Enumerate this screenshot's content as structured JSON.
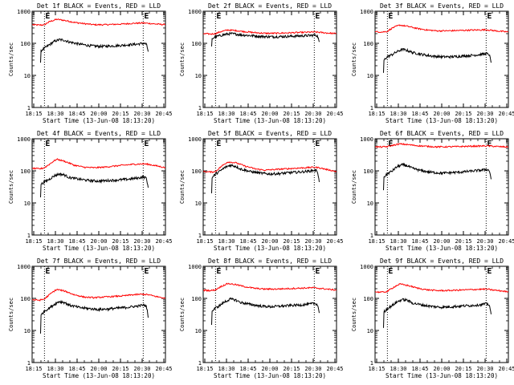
{
  "chart_data": [
    {
      "type": "line",
      "title": "Det 1f BLACK = Events, RED = LLD",
      "xlabel": "Start Time (13-Jun-08 18:13:20)",
      "ylabel": "Counts/sec",
      "yscale": "log",
      "ylim": [
        1,
        1000
      ],
      "xlim": [
        18.25,
        20.95
      ],
      "xticks": [
        "18:15",
        "18:30",
        "18:45",
        "20:00",
        "20:15",
        "20:30",
        "20:45"
      ],
      "yticks": [
        "1",
        "10",
        "100",
        "1000"
      ],
      "markers": [
        {
          "label": "E",
          "x": 18.5
        },
        {
          "label": "E",
          "x": 20.5
        }
      ],
      "series": [
        {
          "color": "#ff0000",
          "x": [
            18.25,
            18.4,
            18.5,
            18.6,
            18.75,
            18.9,
            19.1,
            19.3,
            19.5,
            19.7,
            19.9,
            20.1,
            20.3,
            20.5,
            20.6,
            20.75,
            20.95
          ],
          "y": [
            380,
            370,
            380,
            470,
            560,
            520,
            450,
            410,
            380,
            380,
            390,
            400,
            420,
            430,
            420,
            400,
            380
          ]
        },
        {
          "color": "#000000",
          "x": [
            18.42,
            18.43,
            18.5,
            18.6,
            18.7,
            18.8,
            18.9,
            19.0,
            19.2,
            19.4,
            19.6,
            19.8,
            20.0,
            20.2,
            20.4,
            20.5,
            20.56,
            20.6
          ],
          "y": [
            25,
            60,
            70,
            90,
            115,
            130,
            125,
            110,
            95,
            85,
            80,
            82,
            85,
            90,
            95,
            100,
            95,
            55
          ]
        }
      ]
    },
    {
      "type": "line",
      "title": "Det 2f BLACK = Events, RED = LLD",
      "xlabel": "Start Time (13-Jun-08 18:13:20)",
      "ylabel": "Counts/sec",
      "yscale": "log",
      "ylim": [
        1,
        1000
      ],
      "xlim": [
        18.25,
        20.95
      ],
      "xticks": [
        "18:15",
        "18:30",
        "18:45",
        "20:00",
        "20:15",
        "20:30",
        "20:45"
      ],
      "yticks": [
        "1",
        "10",
        "100",
        "1000"
      ],
      "markers": [
        {
          "label": "E",
          "x": 18.5
        },
        {
          "label": "E",
          "x": 20.5
        }
      ],
      "series": [
        {
          "color": "#ff0000",
          "x": [
            18.25,
            18.4,
            18.5,
            18.6,
            18.75,
            18.9,
            19.1,
            19.3,
            19.5,
            19.7,
            19.9,
            20.1,
            20.3,
            20.5,
            20.6,
            20.75,
            20.95
          ],
          "y": [
            200,
            195,
            200,
            230,
            260,
            250,
            230,
            215,
            205,
            205,
            210,
            215,
            220,
            225,
            220,
            210,
            200
          ]
        },
        {
          "color": "#000000",
          "x": [
            18.42,
            18.43,
            18.5,
            18.6,
            18.7,
            18.8,
            18.9,
            19.0,
            19.2,
            19.4,
            19.6,
            19.8,
            20.0,
            20.2,
            20.4,
            20.5,
            20.56,
            20.6
          ],
          "y": [
            80,
            140,
            160,
            175,
            190,
            200,
            195,
            185,
            175,
            165,
            160,
            162,
            165,
            170,
            175,
            180,
            175,
            110
          ]
        }
      ]
    },
    {
      "type": "line",
      "title": "Det 3f BLACK = Events, RED = LLD",
      "xlabel": "Start Time (13-Jun-08 18:13:20)",
      "ylabel": "Counts/sec",
      "yscale": "log",
      "ylim": [
        1,
        1000
      ],
      "xlim": [
        18.25,
        20.95
      ],
      "xticks": [
        "18:15",
        "18:30",
        "18:45",
        "20:00",
        "20:15",
        "20:30",
        "20:45"
      ],
      "yticks": [
        "1",
        "10",
        "100",
        "1000"
      ],
      "markers": [
        {
          "label": "E",
          "x": 18.5
        },
        {
          "label": "E",
          "x": 20.5
        }
      ],
      "series": [
        {
          "color": "#ff0000",
          "x": [
            18.25,
            18.4,
            18.5,
            18.6,
            18.75,
            18.9,
            19.1,
            19.3,
            19.5,
            19.7,
            19.9,
            20.1,
            20.3,
            20.5,
            20.6,
            20.75,
            20.95
          ],
          "y": [
            230,
            225,
            235,
            300,
            370,
            340,
            290,
            260,
            245,
            245,
            250,
            255,
            260,
            265,
            255,
            240,
            225
          ]
        },
        {
          "color": "#000000",
          "x": [
            18.42,
            18.43,
            18.5,
            18.6,
            18.7,
            18.8,
            18.9,
            19.0,
            19.2,
            19.4,
            19.6,
            19.8,
            20.0,
            20.2,
            20.4,
            20.5,
            20.56,
            20.6
          ],
          "y": [
            12,
            30,
            38,
            45,
            55,
            65,
            60,
            52,
            45,
            40,
            38,
            38,
            40,
            42,
            45,
            48,
            45,
            25
          ]
        }
      ]
    },
    {
      "type": "line",
      "title": "Det 4f BLACK = Events, RED = LLD",
      "xlabel": "Start Time (13-Jun-08 18:13:20)",
      "ylabel": "Counts/sec",
      "yscale": "log",
      "ylim": [
        1,
        1000
      ],
      "xlim": [
        18.25,
        20.95
      ],
      "xticks": [
        "18:15",
        "18:30",
        "18:45",
        "20:00",
        "20:15",
        "20:30",
        "20:45"
      ],
      "yticks": [
        "1",
        "10",
        "100",
        "1000"
      ],
      "markers": [
        {
          "label": "E",
          "x": 18.5
        },
        {
          "label": "E",
          "x": 20.5
        }
      ],
      "series": [
        {
          "color": "#ff0000",
          "x": [
            18.25,
            18.4,
            18.5,
            18.6,
            18.75,
            18.9,
            19.1,
            19.3,
            19.5,
            19.7,
            19.9,
            20.1,
            20.3,
            20.5,
            20.6,
            20.75,
            20.95
          ],
          "y": [
            120,
            115,
            125,
            160,
            230,
            200,
            150,
            130,
            125,
            130,
            140,
            150,
            160,
            165,
            160,
            145,
            125
          ]
        },
        {
          "color": "#000000",
          "x": [
            18.42,
            18.43,
            18.5,
            18.6,
            18.7,
            18.8,
            18.9,
            19.0,
            19.2,
            19.4,
            19.6,
            19.8,
            20.0,
            20.2,
            20.4,
            20.5,
            20.56,
            20.6
          ],
          "y": [
            15,
            38,
            45,
            55,
            70,
            80,
            75,
            62,
            55,
            50,
            48,
            50,
            52,
            55,
            60,
            65,
            60,
            30
          ]
        }
      ]
    },
    {
      "type": "line",
      "title": "Det 5f BLACK = Events, RED = LLD",
      "xlabel": "Start Time (13-Jun-08 18:13:20)",
      "ylabel": "Counts/sec",
      "yscale": "log",
      "ylim": [
        1,
        1000
      ],
      "xlim": [
        18.25,
        20.95
      ],
      "xticks": [
        "18:15",
        "18:30",
        "18:45",
        "20:00",
        "20:15",
        "20:30",
        "20:45"
      ],
      "yticks": [
        "1",
        "10",
        "100",
        "1000"
      ],
      "markers": [
        {
          "label": "E",
          "x": 18.5
        },
        {
          "label": "E",
          "x": 20.5
        }
      ],
      "series": [
        {
          "color": "#ff0000",
          "x": [
            18.25,
            18.4,
            18.5,
            18.6,
            18.75,
            18.9,
            19.1,
            19.3,
            19.5,
            19.7,
            19.9,
            20.1,
            20.3,
            20.5,
            20.6,
            20.75,
            20.95
          ],
          "y": [
            95,
            92,
            95,
            130,
            190,
            180,
            140,
            115,
            105,
            110,
            115,
            120,
            125,
            130,
            125,
            110,
            95
          ]
        },
        {
          "color": "#000000",
          "x": [
            18.42,
            18.43,
            18.5,
            18.6,
            18.7,
            18.8,
            18.9,
            19.0,
            19.2,
            19.4,
            19.6,
            19.8,
            20.0,
            20.2,
            20.4,
            20.5,
            20.56,
            20.6
          ],
          "y": [
            20,
            60,
            80,
            100,
            130,
            150,
            140,
            115,
            95,
            85,
            80,
            82,
            88,
            92,
            98,
            105,
            100,
            45
          ]
        }
      ]
    },
    {
      "type": "line",
      "title": "Det 6f BLACK = Events, RED = LLD",
      "xlabel": "Start Time (13-Jun-08 18:13:20)",
      "ylabel": "Counts/sec",
      "yscale": "log",
      "ylim": [
        1,
        1000
      ],
      "xlim": [
        18.25,
        20.95
      ],
      "xticks": [
        "18:15",
        "18:30",
        "18:45",
        "20:00",
        "20:15",
        "20:30",
        "20:45"
      ],
      "yticks": [
        "1",
        "10",
        "100",
        "1000"
      ],
      "markers": [
        {
          "label": "E",
          "x": 18.5
        },
        {
          "label": "E",
          "x": 20.5
        }
      ],
      "series": [
        {
          "color": "#ff0000",
          "x": [
            18.25,
            18.4,
            18.5,
            18.6,
            18.75,
            18.9,
            19.1,
            19.3,
            19.5,
            19.7,
            19.9,
            20.1,
            20.3,
            20.5,
            20.6,
            20.75,
            20.95
          ],
          "y": [
            560,
            555,
            570,
            620,
            690,
            660,
            610,
            580,
            560,
            560,
            570,
            580,
            590,
            600,
            590,
            570,
            550
          ]
        },
        {
          "color": "#000000",
          "x": [
            18.42,
            18.43,
            18.5,
            18.6,
            18.7,
            18.8,
            18.9,
            19.0,
            19.2,
            19.4,
            19.6,
            19.8,
            20.0,
            20.2,
            20.4,
            20.5,
            20.56,
            20.6
          ],
          "y": [
            25,
            65,
            80,
            100,
            135,
            155,
            145,
            120,
            100,
            90,
            85,
            88,
            92,
            98,
            105,
            110,
            105,
            55
          ]
        }
      ]
    },
    {
      "type": "line",
      "title": "Det 7f BLACK = Events, RED = LLD",
      "xlabel": "Start Time (13-Jun-08 18:13:20)",
      "ylabel": "Counts/sec",
      "yscale": "log",
      "ylim": [
        1,
        1000
      ],
      "xlim": [
        18.25,
        20.95
      ],
      "xticks": [
        "18:15",
        "18:30",
        "18:45",
        "20:00",
        "20:15",
        "20:30",
        "20:45"
      ],
      "yticks": [
        "1",
        "10",
        "100",
        "1000"
      ],
      "markers": [
        {
          "label": "E",
          "x": 18.5
        },
        {
          "label": "E",
          "x": 20.5
        }
      ],
      "series": [
        {
          "color": "#ff0000",
          "x": [
            18.25,
            18.4,
            18.5,
            18.6,
            18.75,
            18.9,
            19.1,
            19.3,
            19.5,
            19.7,
            19.9,
            20.1,
            20.3,
            20.5,
            20.6,
            20.75,
            20.95
          ],
          "y": [
            90,
            88,
            95,
            130,
            190,
            170,
            130,
            110,
            105,
            110,
            115,
            120,
            130,
            135,
            130,
            115,
            100
          ]
        },
        {
          "color": "#000000",
          "x": [
            18.42,
            18.43,
            18.5,
            18.6,
            18.7,
            18.8,
            18.9,
            19.0,
            19.2,
            19.4,
            19.6,
            19.8,
            20.0,
            20.2,
            20.4,
            20.5,
            20.56,
            20.6
          ],
          "y": [
            8,
            30,
            40,
            50,
            65,
            80,
            75,
            62,
            52,
            48,
            45,
            47,
            50,
            53,
            58,
            62,
            58,
            25
          ]
        }
      ]
    },
    {
      "type": "line",
      "title": "Det 8f BLACK = Events, RED = LLD",
      "xlabel": "Start Time (13-Jun-08 18:13:20)",
      "ylabel": "Counts/sec",
      "yscale": "log",
      "ylim": [
        1,
        1000
      ],
      "xlim": [
        18.25,
        20.95
      ],
      "xticks": [
        "18:15",
        "18:30",
        "18:45",
        "20:00",
        "20:15",
        "20:30",
        "20:45"
      ],
      "yticks": [
        "1",
        "10",
        "100",
        "1000"
      ],
      "markers": [
        {
          "label": "E",
          "x": 18.5
        },
        {
          "label": "E",
          "x": 20.5
        }
      ],
      "series": [
        {
          "color": "#ff0000",
          "x": [
            18.25,
            18.4,
            18.5,
            18.6,
            18.75,
            18.9,
            19.1,
            19.3,
            19.5,
            19.7,
            19.9,
            20.1,
            20.3,
            20.5,
            20.6,
            20.75,
            20.95
          ],
          "y": [
            180,
            175,
            185,
            230,
            290,
            270,
            230,
            205,
            195,
            195,
            200,
            205,
            210,
            215,
            205,
            195,
            180
          ]
        },
        {
          "color": "#000000",
          "x": [
            18.42,
            18.43,
            18.5,
            18.6,
            18.7,
            18.8,
            18.9,
            19.0,
            19.2,
            19.4,
            19.6,
            19.8,
            20.0,
            20.2,
            20.4,
            20.5,
            20.56,
            20.6
          ],
          "y": [
            15,
            40,
            50,
            62,
            80,
            95,
            90,
            75,
            65,
            58,
            55,
            57,
            60,
            62,
            66,
            70,
            66,
            35
          ]
        }
      ]
    },
    {
      "type": "line",
      "title": "Det 9f BLACK = Events, RED = LLD",
      "xlabel": "Start Time (13-Jun-08 18:13:20)",
      "ylabel": "Counts/sec",
      "yscale": "log",
      "ylim": [
        1,
        1000
      ],
      "xlim": [
        18.25,
        20.95
      ],
      "xticks": [
        "18:15",
        "18:30",
        "18:45",
        "20:00",
        "20:15",
        "20:30",
        "20:45"
      ],
      "yticks": [
        "1",
        "10",
        "100",
        "1000"
      ],
      "markers": [
        {
          "label": "E",
          "x": 18.5
        },
        {
          "label": "E",
          "x": 20.5
        }
      ],
      "series": [
        {
          "color": "#ff0000",
          "x": [
            18.25,
            18.4,
            18.5,
            18.6,
            18.75,
            18.9,
            19.1,
            19.3,
            19.5,
            19.7,
            19.9,
            20.1,
            20.3,
            20.5,
            20.6,
            20.75,
            20.95
          ],
          "y": [
            160,
            155,
            165,
            210,
            280,
            255,
            210,
            185,
            175,
            175,
            180,
            185,
            190,
            195,
            185,
            175,
            160
          ]
        },
        {
          "color": "#000000",
          "x": [
            18.42,
            18.43,
            18.5,
            18.6,
            18.7,
            18.8,
            18.9,
            19.0,
            19.2,
            19.4,
            19.6,
            19.8,
            20.0,
            20.2,
            20.4,
            20.5,
            20.56,
            20.6
          ],
          "y": [
            12,
            38,
            48,
            60,
            78,
            92,
            88,
            72,
            62,
            56,
            53,
            55,
            58,
            60,
            64,
            68,
            64,
            32
          ]
        }
      ]
    }
  ]
}
